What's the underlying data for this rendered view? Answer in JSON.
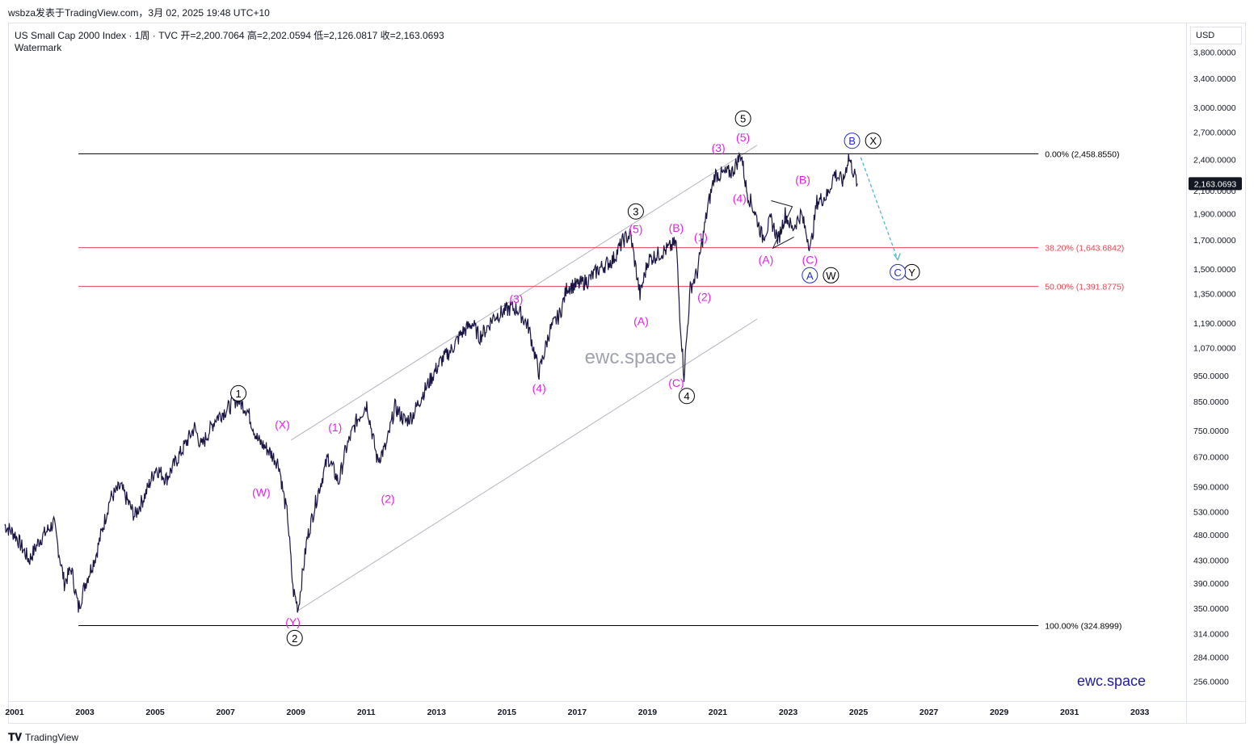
{
  "header": {
    "text": "wsbza发表于TradingView.com，3月 02, 2025 19:48 UTC+10"
  },
  "legend": {
    "line1": "US Small Cap 2000 Index · 1周 · TVC  开=2,200.7064  高=2,202.0594  低=2,126.0817  收=2,163.0693",
    "line2": "Watermark"
  },
  "currency": "USD",
  "footer": {
    "brand": "TradingView"
  },
  "colors": {
    "price": "#1a1545",
    "wave_magenta": "#e91ee8",
    "wave_blue": "#1e2bd6",
    "fib_red": "#e8434f",
    "channel": "#b2b5be",
    "projection": "#4fb5d6"
  },
  "chart_data": {
    "type": "line",
    "title": "US Small Cap 2000 Index",
    "xlabel": "",
    "ylabel": "",
    "log_scale": true,
    "ylim": [
      235,
      4300
    ],
    "xlim": [
      2001.0,
      2034.5
    ],
    "x_ticks": [
      "2001",
      "2003",
      "2005",
      "2007",
      "2009",
      "2011",
      "2013",
      "2015",
      "2017",
      "2019",
      "2021",
      "2023",
      "2025",
      "2027",
      "2029",
      "2031",
      "2033"
    ],
    "y_ticks": [
      "3,800.0000",
      "3,400.0000",
      "3,000.0000",
      "2,700.0000",
      "2,400.0000",
      "2,100.0000",
      "1,900.0000",
      "1,700.0000",
      "1,500.0000",
      "1,350.0000",
      "1,190.0000",
      "1,070.0000",
      "950.0000",
      "850.0000",
      "750.0000",
      "670.0000",
      "590.0000",
      "530.0000",
      "480.0000",
      "430.0000",
      "390.0000",
      "350.0000",
      "314.0000",
      "284.0000",
      "256.0000"
    ],
    "last_price_label": "2,163.0693",
    "series": [
      {
        "x": [
          2000.9,
          2001.2,
          2001.6,
          2001.9,
          2002.3,
          2002.6,
          2002.8,
          2003.0,
          2003.2,
          2003.5,
          2003.9,
          2004.2,
          2004.6,
          2004.9,
          2005.2,
          2005.5,
          2005.9,
          2006.3,
          2006.5,
          2006.9,
          2007.3,
          2007.5,
          2007.8,
          2008.1,
          2008.4,
          2008.7,
          2008.85,
          2008.95,
          2009.1,
          2009.25,
          2009.5,
          2009.8,
          2010.1,
          2010.4,
          2010.6,
          2010.9,
          2011.2,
          2011.5,
          2011.75,
          2012.0,
          2012.3,
          2012.5,
          2012.8,
          2013.0,
          2013.3,
          2013.6,
          2013.9,
          2014.2,
          2014.4,
          2014.6,
          2014.8,
          2015.0,
          2015.3,
          2015.5,
          2015.8,
          2016.1,
          2016.4,
          2016.7,
          2016.9,
          2017.2,
          2017.5,
          2017.8,
          2018.2,
          2018.5,
          2018.7,
          2018.97,
          2019.2,
          2019.5,
          2019.8,
          2020.0,
          2020.1,
          2020.22,
          2020.4,
          2020.6,
          2020.9,
          2021.1,
          2021.3,
          2021.6,
          2021.85,
          2022.0,
          2022.25,
          2022.45,
          2022.7,
          2022.9,
          2023.1,
          2023.3,
          2023.55,
          2023.82,
          2024.0,
          2024.3,
          2024.5,
          2024.75,
          2024.9,
          2025.15
        ],
        "values": [
          500,
          480,
          430,
          470,
          505,
          390,
          415,
          350,
          390,
          440,
          560,
          590,
          520,
          570,
          640,
          610,
          680,
          760,
          700,
          790,
          830,
          860,
          820,
          720,
          690,
          650,
          560,
          520,
          380,
          350,
          470,
          570,
          670,
          600,
          690,
          780,
          840,
          660,
          700,
          830,
          780,
          800,
          880,
          930,
          1010,
          1060,
          1140,
          1190,
          1120,
          1160,
          1220,
          1240,
          1270,
          1260,
          1170,
          960,
          1150,
          1240,
          1390,
          1400,
          1430,
          1500,
          1560,
          1700,
          1740,
          1340,
          1560,
          1600,
          1640,
          1680,
          1240,
          950,
          1380,
          1480,
          1960,
          2250,
          2250,
          2280,
          2458,
          2100,
          1900,
          1720,
          1850,
          1700,
          1900,
          1780,
          1900,
          1640,
          2000,
          2060,
          2260,
          2180,
          2430,
          2163
        ],
        "name": "US Small Cap 2000 Index"
      }
    ],
    "fib_levels": [
      {
        "value": 2458.855,
        "label": "0.00% (2,458.8550)",
        "color": "#000000"
      },
      {
        "value": 1643.6842,
        "label": "38.20% (1,643.6842)",
        "color": "#e8434f"
      },
      {
        "value": 1391.8775,
        "label": "50.00% (1,391.8775)",
        "color": "#e8434f"
      },
      {
        "value": 324.8999,
        "label": "100.00% (324.8999)",
        "color": "#000000"
      }
    ],
    "channel": [
      {
        "from": [
          2009.05,
          720
        ],
        "to": [
          2022.3,
          2550
        ]
      },
      {
        "from": [
          2009.2,
          345
        ],
        "to": [
          2022.3,
          1210
        ]
      }
    ],
    "projection": {
      "from": [
        2025.25,
        2420
      ],
      "to": [
        2026.3,
        1560
      ]
    },
    "wave_labels": [
      {
        "text": "1",
        "x": 2007.55,
        "y": 880,
        "style": "circle-black"
      },
      {
        "text": "2",
        "x": 2009.15,
        "y": 308,
        "style": "circle-black"
      },
      {
        "text": "3",
        "x": 2018.85,
        "y": 1920,
        "style": "circle-black"
      },
      {
        "text": "4",
        "x": 2020.3,
        "y": 870,
        "style": "circle-black"
      },
      {
        "text": "5",
        "x": 2021.9,
        "y": 2860,
        "style": "circle-black"
      },
      {
        "text": "X",
        "x": 2025.6,
        "y": 2600,
        "style": "circle-black"
      },
      {
        "text": "W",
        "x": 2024.4,
        "y": 1460,
        "style": "circle-black"
      },
      {
        "text": "Y",
        "x": 2026.7,
        "y": 1480,
        "style": "circle-black"
      },
      {
        "text": "B",
        "x": 2025.0,
        "y": 2600,
        "style": "circle-blue"
      },
      {
        "text": "A",
        "x": 2023.8,
        "y": 1460,
        "style": "circle-blue"
      },
      {
        "text": "C",
        "x": 2026.3,
        "y": 1480,
        "style": "circle-blue"
      },
      {
        "text": "(X)",
        "x": 2008.8,
        "y": 770,
        "style": "magenta"
      },
      {
        "text": "(W)",
        "x": 2008.2,
        "y": 575,
        "style": "magenta"
      },
      {
        "text": "(Y)",
        "x": 2009.1,
        "y": 330,
        "style": "magenta"
      },
      {
        "text": "(1)",
        "x": 2010.3,
        "y": 760,
        "style": "magenta"
      },
      {
        "text": "(2)",
        "x": 2011.8,
        "y": 560,
        "style": "magenta"
      },
      {
        "text": "(3)",
        "x": 2015.45,
        "y": 1320,
        "style": "magenta"
      },
      {
        "text": "(4)",
        "x": 2016.1,
        "y": 900,
        "style": "magenta"
      },
      {
        "text": "(5)",
        "x": 2018.85,
        "y": 1780,
        "style": "magenta"
      },
      {
        "text": "(A)",
        "x": 2019.0,
        "y": 1200,
        "style": "magenta"
      },
      {
        "text": "(B)",
        "x": 2020.0,
        "y": 1790,
        "style": "magenta"
      },
      {
        "text": "(C)",
        "x": 2020.0,
        "y": 920,
        "style": "magenta"
      },
      {
        "text": "(1)",
        "x": 2020.7,
        "y": 1720,
        "style": "magenta"
      },
      {
        "text": "(2)",
        "x": 2020.8,
        "y": 1330,
        "style": "magenta"
      },
      {
        "text": "(3)",
        "x": 2021.2,
        "y": 2520,
        "style": "magenta"
      },
      {
        "text": "(5)",
        "x": 2021.9,
        "y": 2640,
        "style": "magenta"
      },
      {
        "text": "(4)",
        "x": 2021.8,
        "y": 2030,
        "style": "magenta"
      },
      {
        "text": "(A)",
        "x": 2022.55,
        "y": 1560,
        "style": "magenta"
      },
      {
        "text": "(B)",
        "x": 2023.6,
        "y": 2200,
        "style": "magenta"
      },
      {
        "text": "(C)",
        "x": 2023.8,
        "y": 1560,
        "style": "magenta"
      }
    ],
    "watermark_center": "ewc.space",
    "watermark_corner": "ewc.space"
  }
}
